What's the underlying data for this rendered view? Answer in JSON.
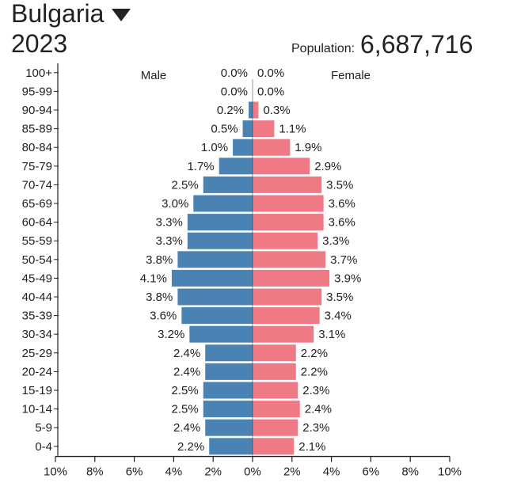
{
  "header": {
    "country": "Bulgaria",
    "year": "2023",
    "population_label": "Population:",
    "population_value": "6,687,716"
  },
  "colors": {
    "male": "#4a82b4",
    "female": "#ef7a86",
    "text": "#222222",
    "axis": "#222222"
  },
  "chart_data": {
    "type": "bar",
    "orientation": "horizontal",
    "subtype": "population-pyramid",
    "categories": [
      "100+",
      "95-99",
      "90-94",
      "85-89",
      "80-84",
      "75-79",
      "70-74",
      "65-69",
      "60-64",
      "55-59",
      "50-54",
      "45-49",
      "40-44",
      "35-39",
      "30-34",
      "25-29",
      "20-24",
      "15-19",
      "10-14",
      "5-9",
      "0-4"
    ],
    "series": [
      {
        "name": "Male",
        "values": [
          0.0,
          0.0,
          0.2,
          0.5,
          1.0,
          1.7,
          2.5,
          3.0,
          3.3,
          3.3,
          3.8,
          4.1,
          3.8,
          3.6,
          3.2,
          2.4,
          2.4,
          2.5,
          2.5,
          2.4,
          2.2
        ]
      },
      {
        "name": "Female",
        "values": [
          0.0,
          0.0,
          0.3,
          1.1,
          1.9,
          2.9,
          3.5,
          3.6,
          3.6,
          3.3,
          3.7,
          3.9,
          3.5,
          3.4,
          3.1,
          2.2,
          2.2,
          2.3,
          2.4,
          2.3,
          2.1
        ]
      }
    ],
    "value_labels": {
      "Male": [
        "0.0%",
        "0.0%",
        "0.2%",
        "0.5%",
        "1.0%",
        "1.7%",
        "2.5%",
        "3.0%",
        "3.3%",
        "3.3%",
        "3.8%",
        "4.1%",
        "3.8%",
        "3.6%",
        "3.2%",
        "2.4%",
        "2.4%",
        "2.5%",
        "2.5%",
        "2.4%",
        "2.2%"
      ],
      "Female": [
        "0.0%",
        "0.0%",
        "0.3%",
        "1.1%",
        "1.9%",
        "2.9%",
        "3.5%",
        "3.6%",
        "3.6%",
        "3.3%",
        "3.7%",
        "3.9%",
        "3.5%",
        "3.4%",
        "3.1%",
        "2.2%",
        "2.2%",
        "2.3%",
        "2.4%",
        "2.3%",
        "2.1%"
      ]
    },
    "xaxis": {
      "ticks": [
        -10,
        -8,
        -6,
        -4,
        -2,
        0,
        2,
        4,
        6,
        8,
        10
      ],
      "tick_labels": [
        "10%",
        "8%",
        "6%",
        "4%",
        "2%",
        "0%",
        "2%",
        "4%",
        "6%",
        "8%",
        "10%"
      ],
      "range": [
        -10,
        10
      ]
    },
    "legend": [
      "Male",
      "Female"
    ],
    "legend_placement": "top"
  }
}
